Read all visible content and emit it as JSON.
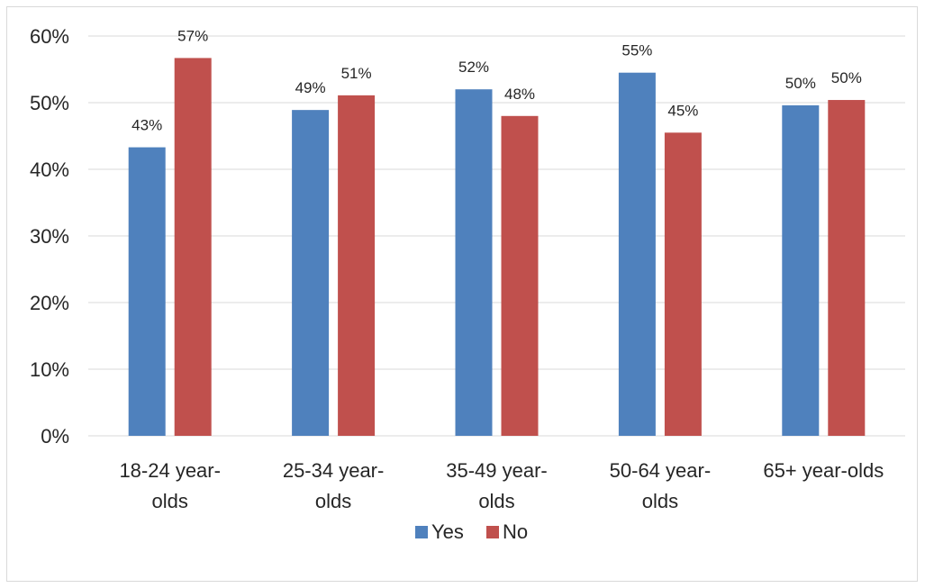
{
  "chart_data": {
    "type": "bar",
    "title": "",
    "xlabel": "",
    "ylabel": "",
    "ylim": [
      0,
      60
    ],
    "y_ticks": [
      "0%",
      "10%",
      "20%",
      "30%",
      "40%",
      "50%",
      "60%"
    ],
    "y_tick_values": [
      0,
      10,
      20,
      30,
      40,
      50,
      60
    ],
    "categories": [
      [
        "18-24 year-",
        "olds"
      ],
      [
        "25-34 year-",
        "olds"
      ],
      [
        "35-49 year-",
        "olds"
      ],
      [
        "50-64 year-",
        "olds"
      ],
      [
        "65+ year-olds"
      ]
    ],
    "series": [
      {
        "name": "Yes",
        "color": "#4f81bd",
        "values": [
          43.3,
          48.9,
          52.0,
          54.5,
          49.6
        ],
        "labels": [
          "43%",
          "49%",
          "52%",
          "55%",
          "50%"
        ]
      },
      {
        "name": "No",
        "color": "#c0504d",
        "values": [
          56.7,
          51.1,
          48.0,
          45.5,
          50.4
        ],
        "labels": [
          "57%",
          "51%",
          "48%",
          "45%",
          "50%"
        ]
      }
    ],
    "grid": true,
    "legend_position": "bottom"
  }
}
